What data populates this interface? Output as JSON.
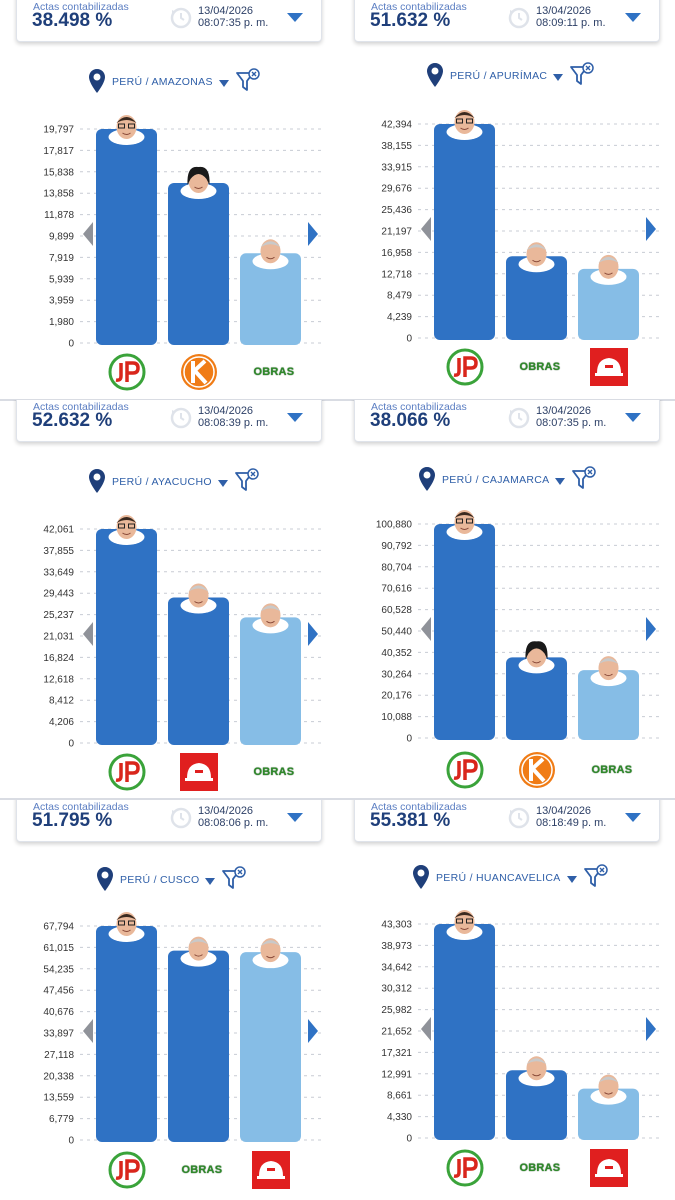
{
  "card_label": "Actas contabilizadas",
  "colors": {
    "bar_first": "#2f72c4",
    "bar_second": "#2f72c4",
    "bar_third": "#86bde6",
    "accent": "#2f72c4"
  },
  "panels": [
    {
      "actas": "38.498 %",
      "date": "13/04/2026",
      "time": "08:07:35 p. m.",
      "location": "PERÚ / AMAZONAS",
      "parties": [
        "jp-logo",
        "k-logo",
        "obras-text"
      ],
      "obras_label": "OBRAS"
    },
    {
      "actas": "51.632 %",
      "date": "13/04/2026",
      "time": "08:09:11 p. m.",
      "location": "PERÚ / APURÍMAC",
      "parties": [
        "jp-logo",
        "obras-text",
        "helmet-logo"
      ],
      "obras_label": "OBRAS"
    },
    {
      "actas": "52.632 %",
      "date": "13/04/2026",
      "time": "08:08:39 p. m.",
      "location": "PERÚ / AYACUCHO",
      "parties": [
        "jp-logo",
        "helmet-logo",
        "obras-text"
      ],
      "obras_label": "OBRAS"
    },
    {
      "actas": "38.066 %",
      "date": "13/04/2026",
      "time": "08:07:35 p. m.",
      "location": "PERÚ / CAJAMARCA",
      "parties": [
        "jp-logo",
        "k-logo",
        "obras-text"
      ],
      "obras_label": "OBRAS"
    },
    {
      "actas": "51.795 %",
      "date": "13/04/2026",
      "time": "08:08:06 p. m.",
      "location": "PERÚ / CUSCO",
      "parties": [
        "jp-logo",
        "obras-text",
        "helmet-logo"
      ],
      "obras_label": "OBRAS"
    },
    {
      "actas": "55.381 %",
      "date": "13/04/2026",
      "time": "08:18:49 p. m.",
      "location": "PERÚ / HUANCAVELICA",
      "parties": [
        "jp-logo",
        "obras-text",
        "helmet-logo"
      ],
      "obras_label": "OBRAS"
    }
  ],
  "chart_data": [
    {
      "type": "bar",
      "title": "PERÚ / AMAZONAS",
      "ylim": [
        0,
        19797
      ],
      "yticks": [
        "0",
        "1,980",
        "3,959",
        "5,939",
        "7,919",
        "9,899",
        "11,878",
        "13,858",
        "15,838",
        "17,817",
        "19,797"
      ],
      "categories": [
        "JP",
        "K",
        "OBRAS"
      ],
      "values": [
        19797,
        14800,
        8300
      ]
    },
    {
      "type": "bar",
      "title": "PERÚ / APURÍMAC",
      "ylim": [
        0,
        42394
      ],
      "yticks": [
        "0",
        "4,239",
        "8,479",
        "12,718",
        "16,958",
        "21,197",
        "25,436",
        "29,676",
        "33,915",
        "38,155",
        "42,394"
      ],
      "categories": [
        "JP",
        "OBRAS",
        "HELMET"
      ],
      "values": [
        42394,
        16200,
        13700
      ]
    },
    {
      "type": "bar",
      "title": "PERÚ / AYACUCHO",
      "ylim": [
        0,
        42061
      ],
      "yticks": [
        "0",
        "4,206",
        "8,412",
        "12,618",
        "16,824",
        "21,031",
        "25,237",
        "29,443",
        "33,649",
        "37,855",
        "42,061"
      ],
      "categories": [
        "JP",
        "HELMET",
        "OBRAS"
      ],
      "values": [
        42061,
        28600,
        24700
      ]
    },
    {
      "type": "bar",
      "title": "PERÚ / CAJAMARCA",
      "ylim": [
        0,
        100880
      ],
      "yticks": [
        "0",
        "10,088",
        "20,176",
        "30,264",
        "40,352",
        "50,440",
        "60,528",
        "70,616",
        "80,704",
        "90,792",
        "100,880"
      ],
      "categories": [
        "JP",
        "K",
        "OBRAS"
      ],
      "values": [
        100880,
        38000,
        32000
      ]
    },
    {
      "type": "bar",
      "title": "PERÚ / CUSCO",
      "ylim": [
        0,
        67794
      ],
      "yticks": [
        "0",
        "6,779",
        "13,559",
        "20,338",
        "27,118",
        "33,897",
        "40,676",
        "47,456",
        "54,235",
        "61,015",
        "67,794"
      ],
      "categories": [
        "JP",
        "OBRAS",
        "HELMET"
      ],
      "values": [
        67794,
        60000,
        59500
      ]
    },
    {
      "type": "bar",
      "title": "PERÚ / HUANCAVELICA",
      "ylim": [
        0,
        43303
      ],
      "yticks": [
        "0",
        "4,330",
        "8,661",
        "12,991",
        "17,321",
        "21,652",
        "25,982",
        "30,312",
        "34,642",
        "38,973",
        "43,303"
      ],
      "categories": [
        "JP",
        "OBRAS",
        "HELMET"
      ],
      "values": [
        43303,
        13700,
        10000
      ]
    }
  ]
}
